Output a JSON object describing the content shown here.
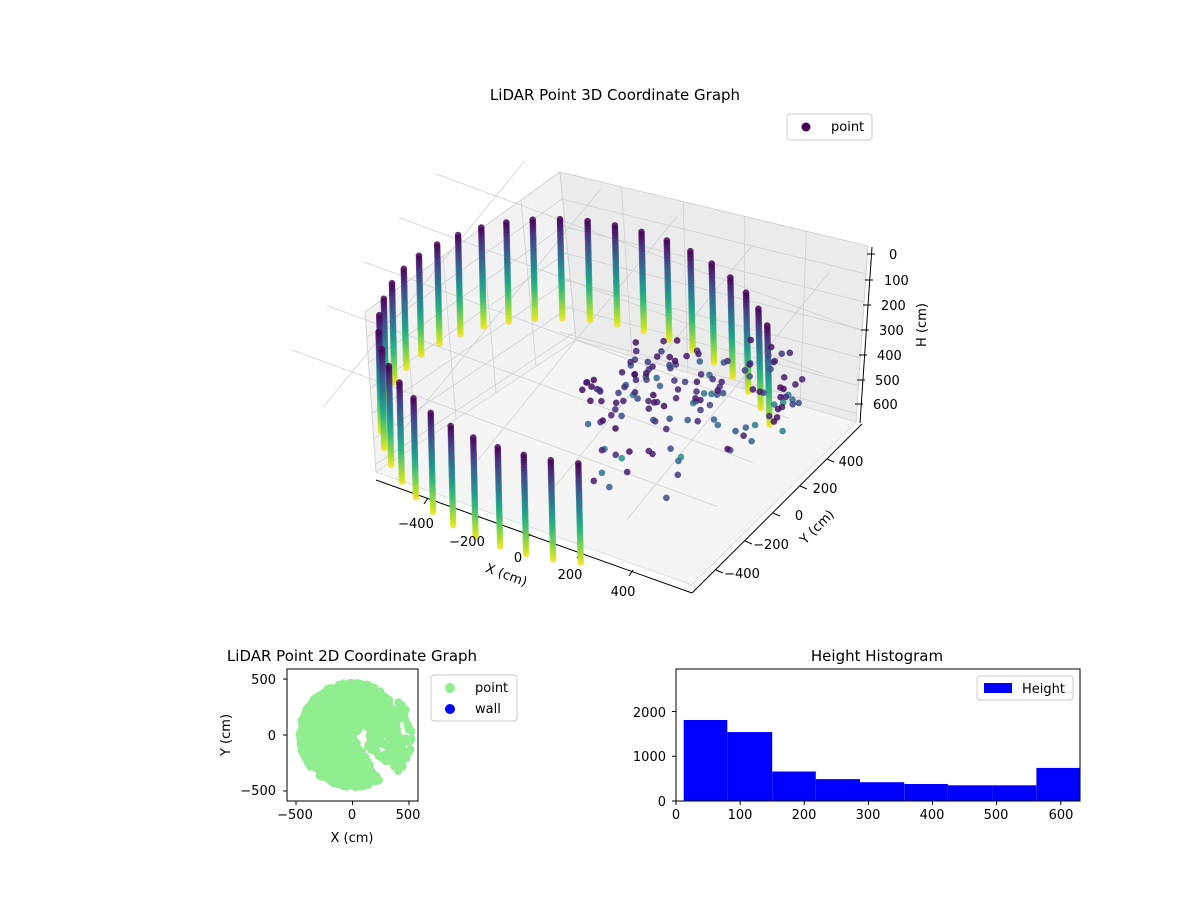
{
  "figure": {
    "background": "#ffffff"
  },
  "chart_data": [
    {
      "type": "scatter",
      "projection": "3d",
      "title": "LiDAR Point 3D Coordinate Graph",
      "xlabel": "X (cm)",
      "ylabel": "Y (cm)",
      "zlabel": "H (cm)",
      "x_ticks": [
        "−400",
        "−200",
        "0",
        "200",
        "400"
      ],
      "y_ticks": [
        "−400",
        "−200",
        "0",
        "200",
        "400"
      ],
      "z_ticks": [
        "0",
        "100",
        "200",
        "300",
        "400",
        "500",
        "600"
      ],
      "xlim": [
        -560,
        560
      ],
      "ylim": [
        -560,
        560
      ],
      "zlim": [
        0,
        630
      ],
      "z_axis_inverted": true,
      "colormap": "viridis",
      "grid": true,
      "legend": {
        "position": "top-right",
        "entries": [
          {
            "label": "point",
            "color": "#440154"
          }
        ]
      },
      "structure": {
        "description_hidden": true,
        "wall_radius": 470,
        "wall_arc_start_deg": 40,
        "wall_arc_end_deg": 300,
        "column_step_deg": 8,
        "height_min": 10,
        "height_max": 615,
        "height_step": 15
      }
    },
    {
      "type": "scatter",
      "title": "LiDAR Point 2D Coordinate Graph",
      "xlabel": "X (cm)",
      "ylabel": "Y (cm)",
      "x_ticks": [
        "−500",
        "0",
        "500"
      ],
      "y_ticks": [
        "−500",
        "0",
        "500"
      ],
      "xlim": [
        -580,
        580
      ],
      "ylim": [
        -590,
        590
      ],
      "legend": {
        "position": "outside-right",
        "entries": [
          {
            "label": "point",
            "color": "#90ee90"
          },
          {
            "label": "wall",
            "color": "#0000ff"
          }
        ]
      },
      "series": [
        {
          "name": "point",
          "color": "#90ee90"
        },
        {
          "name": "wall",
          "color": "#0000ff"
        }
      ]
    },
    {
      "type": "bar",
      "subtype": "histogram",
      "title": "Height Histogram",
      "xlabel": "",
      "ylabel": "",
      "x_ticks": [
        "0",
        "100",
        "200",
        "300",
        "400",
        "500",
        "600"
      ],
      "y_ticks": [
        "0",
        "1000",
        "2000"
      ],
      "xlim": [
        0,
        630
      ],
      "ylim": [
        0,
        2950
      ],
      "color": "#0000ff",
      "legend": {
        "position": "top-right",
        "entries": [
          {
            "label": "Height",
            "color": "#0000ff"
          }
        ]
      },
      "bin_edges": [
        12,
        80,
        150,
        218,
        287,
        356,
        424,
        493,
        562,
        630
      ],
      "counts": [
        1810,
        1540,
        660,
        490,
        420,
        380,
        350,
        350,
        740
      ]
    }
  ]
}
